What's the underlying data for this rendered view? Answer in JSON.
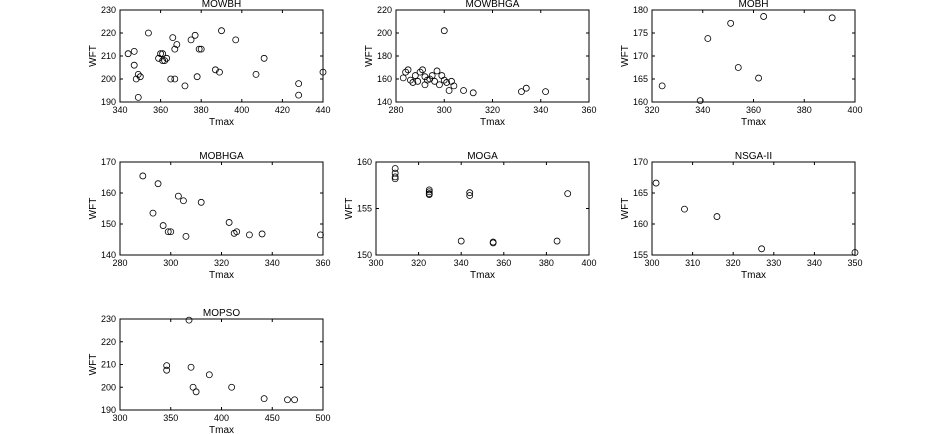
{
  "chart_data": [
    {
      "type": "scatter",
      "title": "MOWBH",
      "xlabel": "Tmax",
      "ylabel": "WFT",
      "xlim": [
        340,
        440
      ],
      "ylim": [
        190,
        230
      ],
      "xticks": [
        "340",
        "360",
        "380",
        "400",
        "420",
        "440"
      ],
      "yticks": [
        "190",
        "200",
        "210",
        "220",
        "230"
      ],
      "grid": false,
      "x": [
        344,
        347,
        347,
        348,
        349,
        349,
        350,
        354,
        359,
        360,
        361,
        361,
        362,
        363,
        365,
        366,
        367,
        367,
        368,
        372,
        375,
        377,
        378,
        379,
        380,
        387,
        389,
        390,
        397,
        407,
        411,
        428,
        428,
        440
      ],
      "y": [
        211,
        212,
        206,
        200,
        202,
        192,
        201,
        220,
        209,
        211,
        208,
        211,
        208,
        209,
        200,
        218,
        213,
        200,
        215,
        197,
        217,
        219,
        201,
        213,
        213,
        204,
        203,
        221,
        217,
        202,
        209,
        198,
        193,
        203
      ]
    },
    {
      "type": "scatter",
      "title": "MOWBHGA",
      "xlabel": "Tmax",
      "ylabel": "WFT",
      "xlim": [
        280,
        360
      ],
      "ylim": [
        140,
        220
      ],
      "xticks": [
        "280",
        "300",
        "320",
        "340",
        "360"
      ],
      "yticks": [
        "140",
        "160",
        "180",
        "200",
        "220"
      ],
      "grid": false,
      "x": [
        283,
        284,
        285,
        286,
        287,
        288,
        289,
        290,
        291,
        292,
        292,
        293,
        294,
        295,
        296,
        297,
        298,
        299,
        300,
        300,
        301,
        302,
        303,
        304,
        308,
        312,
        332,
        334,
        342
      ],
      "y": [
        161,
        166,
        168,
        159,
        157,
        163,
        158,
        166,
        168,
        155,
        162,
        159,
        160,
        163,
        158,
        167,
        155,
        163,
        159,
        202,
        157,
        150,
        158,
        154,
        150,
        148,
        149,
        152,
        149
      ]
    },
    {
      "type": "scatter",
      "title": "MOBH",
      "xlabel": "Tmax",
      "ylabel": "WFT",
      "xlim": [
        320,
        400
      ],
      "ylim": [
        160,
        180
      ],
      "xticks": [
        "320",
        "340",
        "360",
        "380",
        "400"
      ],
      "yticks": [
        "160",
        "165",
        "170",
        "175",
        "180"
      ],
      "grid": false,
      "x": [
        324,
        339,
        342,
        351,
        354,
        362,
        364,
        391
      ],
      "y": [
        163.5,
        160.3,
        173.8,
        177.1,
        167.5,
        165.2,
        178.6,
        178.3
      ]
    },
    {
      "type": "scatter",
      "title": "MOBHGA",
      "xlabel": "Tmax",
      "ylabel": "WFT",
      "xlim": [
        280,
        360
      ],
      "ylim": [
        140,
        170
      ],
      "xticks": [
        "280",
        "300",
        "320",
        "340",
        "360"
      ],
      "yticks": [
        "140",
        "150",
        "160",
        "170"
      ],
      "grid": false,
      "x": [
        289,
        293,
        295,
        297,
        299,
        300,
        303,
        305,
        306,
        312,
        323,
        325,
        326,
        331,
        336,
        359
      ],
      "y": [
        165.5,
        153.5,
        163,
        149.5,
        147.5,
        147.5,
        159,
        157.5,
        146,
        157,
        150.5,
        147,
        147.5,
        146.5,
        146.8,
        146.5
      ]
    },
    {
      "type": "scatter",
      "title": "MOGA",
      "xlabel": "Tmax",
      "ylabel": "WFT",
      "xlim": [
        300,
        400
      ],
      "ylim": [
        150,
        160
      ],
      "xticks": [
        "300",
        "320",
        "340",
        "360",
        "380",
        "400"
      ],
      "yticks": [
        "150",
        "155",
        "160"
      ],
      "grid": false,
      "x": [
        309,
        309,
        309,
        309,
        325,
        325,
        325,
        325,
        340,
        344,
        344,
        355,
        355,
        385,
        390
      ],
      "y": [
        159.3,
        158.8,
        158.4,
        158.2,
        157.0,
        156.8,
        156.6,
        156.5,
        151.5,
        156.7,
        156.4,
        151.4,
        151.3,
        151.5,
        156.6
      ]
    },
    {
      "type": "scatter",
      "title": "NSGA-II",
      "xlabel": "Tmax",
      "ylabel": "WFT",
      "xlim": [
        300,
        350
      ],
      "ylim": [
        155,
        170
      ],
      "xticks": [
        "300",
        "310",
        "320",
        "330",
        "340",
        "350"
      ],
      "yticks": [
        "155",
        "160",
        "165",
        "170"
      ],
      "grid": false,
      "x": [
        301,
        308,
        316,
        327,
        350
      ],
      "y": [
        166.6,
        162.4,
        161.2,
        156.0,
        155.4
      ]
    },
    {
      "type": "scatter",
      "title": "MOPSO",
      "xlabel": "Tmax",
      "ylabel": "WFT",
      "xlim": [
        300,
        500
      ],
      "ylim": [
        190,
        230
      ],
      "xticks": [
        "300",
        "350",
        "400",
        "450",
        "500"
      ],
      "yticks": [
        "190",
        "200",
        "210",
        "220",
        "230"
      ],
      "grid": false,
      "x": [
        346,
        346,
        368,
        370,
        372,
        375,
        388,
        410,
        442,
        465,
        472
      ],
      "y": [
        209.5,
        207.5,
        229.5,
        208.8,
        200,
        198,
        205.5,
        200,
        195,
        194.5,
        194.5
      ]
    }
  ]
}
